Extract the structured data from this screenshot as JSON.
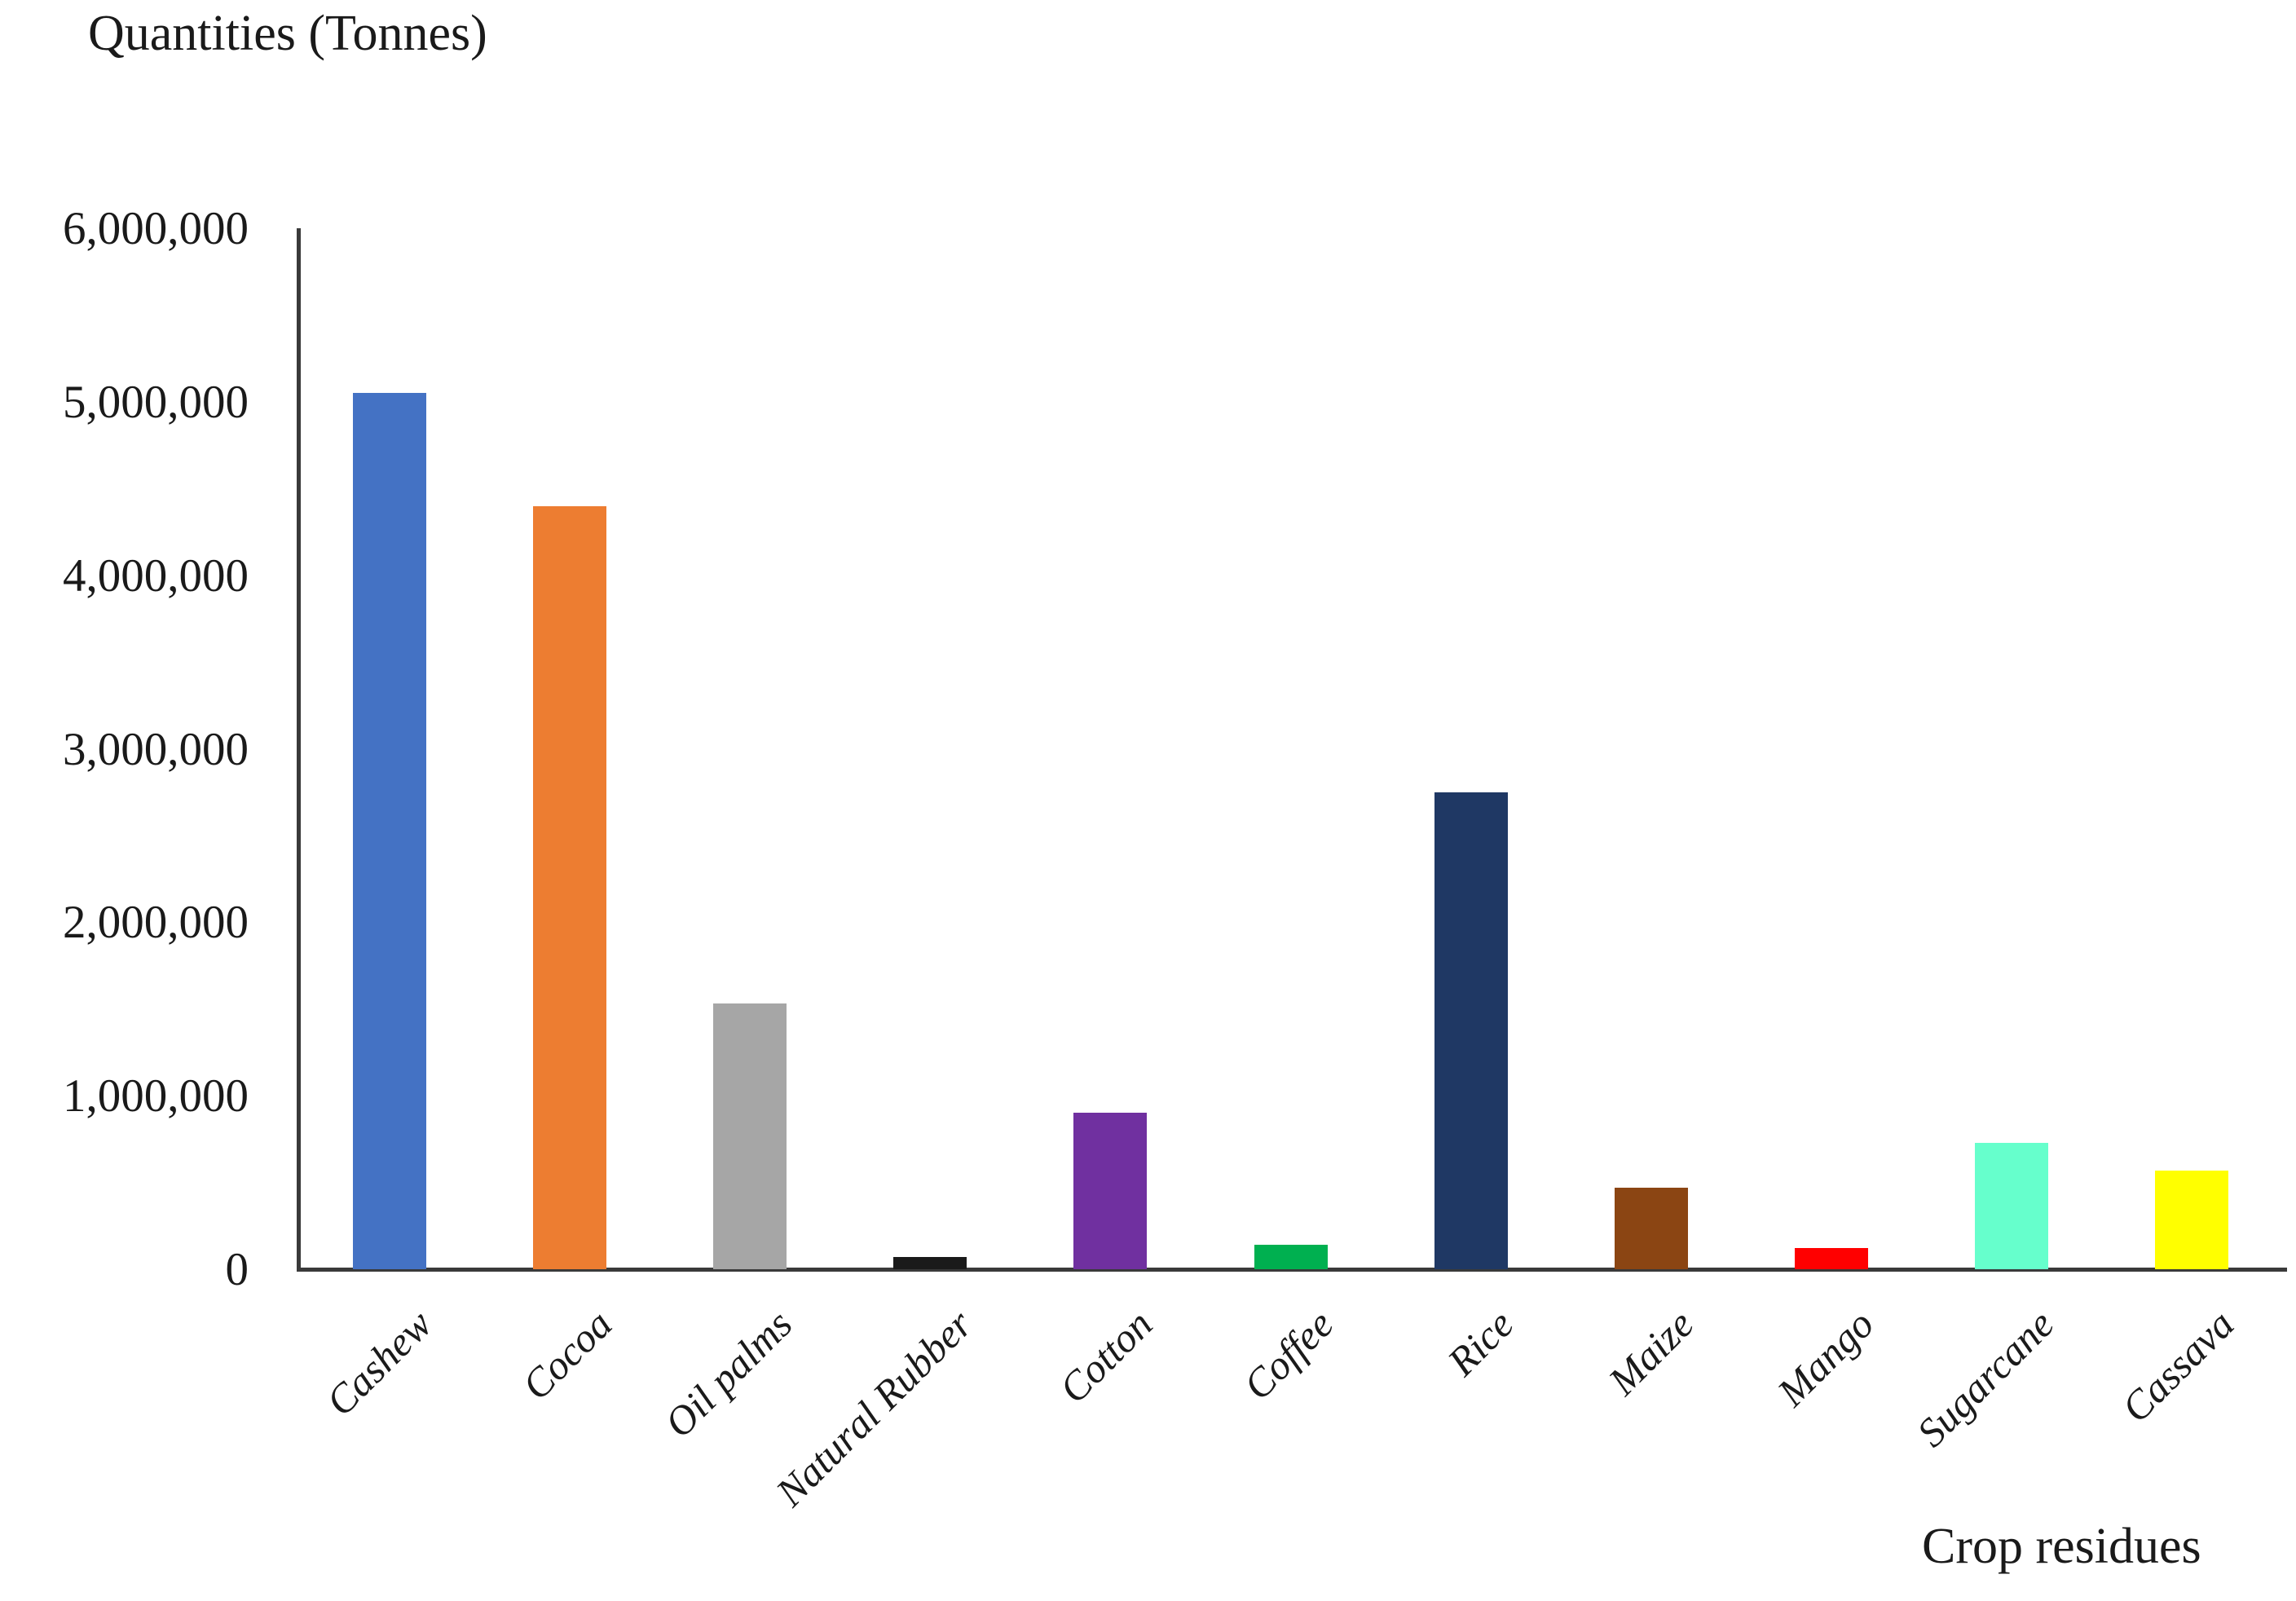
{
  "chart_data": {
    "type": "bar",
    "title": "",
    "ylabel": "Quantities (Tonnes)",
    "xlabel": "Crop residues",
    "categories": [
      "Cashew",
      "Cocoa",
      "Oil palms",
      "Natural Rubber",
      "Cotton",
      "Coffee",
      "Rice",
      "Maize",
      "Mango",
      "Sugarcane",
      "Cassava"
    ],
    "values": [
      5050000,
      4400000,
      1530000,
      70000,
      900000,
      140000,
      2750000,
      470000,
      120000,
      730000,
      570000
    ],
    "colors": [
      "#4472C4",
      "#ED7D31",
      "#A6A6A6",
      "#1A1A1A",
      "#7030A0",
      "#00B050",
      "#1F3864",
      "#8B4513",
      "#FF0000",
      "#66FFCC",
      "#FFFF00"
    ],
    "ylim": [
      0,
      6000000
    ],
    "ytick_step": 1000000,
    "ytick_labels": [
      "0",
      "1,000,000",
      "2,000,000",
      "3,000,000",
      "4,000,000",
      "5,000,000",
      "6,000,000"
    ],
    "grid": false,
    "legend": false,
    "bar_edge_color": "none",
    "axis_color": "#3a3a3a",
    "text_color": "#1a1a1a"
  }
}
